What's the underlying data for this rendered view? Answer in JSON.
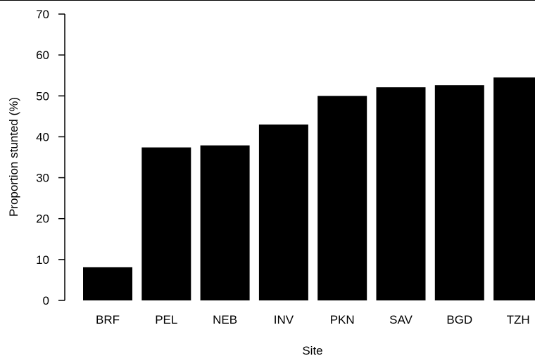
{
  "chart_data": {
    "type": "bar",
    "categories": [
      "BRF",
      "PEL",
      "NEB",
      "INV",
      "PKN",
      "SAV",
      "BGD",
      "TZH"
    ],
    "values": [
      8.1,
      37.4,
      37.9,
      43.0,
      50.0,
      52.1,
      52.6,
      54.5
    ],
    "title": "",
    "xlabel": "Site",
    "ylabel": "Proportion stunted (%)",
    "ylim": [
      0,
      70
    ],
    "yticks": [
      0,
      10,
      20,
      30,
      40,
      50,
      60,
      70
    ],
    "grid": false,
    "bar_color": "#000000"
  }
}
